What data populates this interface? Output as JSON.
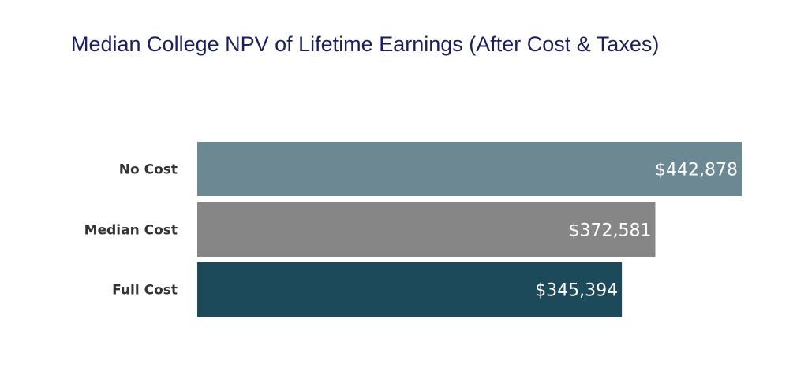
{
  "chart_data": {
    "type": "bar",
    "orientation": "horizontal",
    "title": "Median College NPV of Lifetime Earnings (After Cost & Taxes)",
    "categories": [
      "No Cost",
      "Median Cost",
      "Full Cost"
    ],
    "values": [
      442878,
      372581,
      345394
    ],
    "data_labels": [
      "$442,878",
      "$372,581",
      "$345,394"
    ],
    "colors": [
      "#6b8893",
      "#868686",
      "#1c4a5a"
    ],
    "xlim": [
      0,
      442878
    ],
    "grid": false,
    "legend": "none"
  }
}
